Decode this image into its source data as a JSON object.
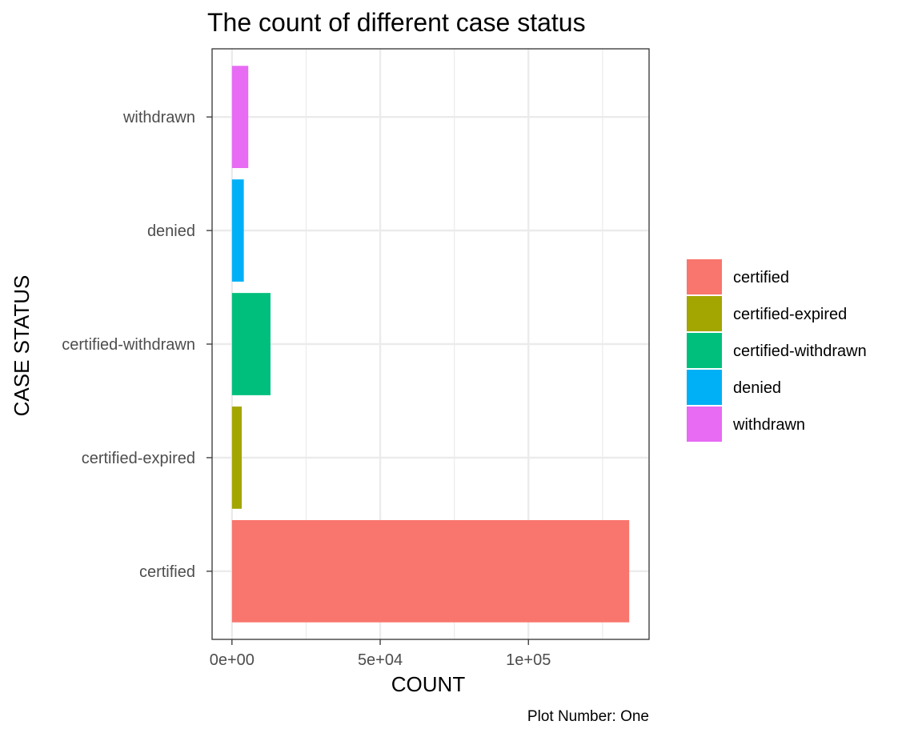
{
  "chart_data": {
    "type": "bar",
    "orientation": "horizontal",
    "title": "The count of different case status",
    "xlabel": "COUNT",
    "ylabel": "CASE STATUS",
    "caption": "Plot Number: One",
    "categories": [
      "certified",
      "certified-expired",
      "certified-withdrawn",
      "denied",
      "withdrawn"
    ],
    "values": [
      134000,
      3300,
      13000,
      4000,
      5500
    ],
    "colors": [
      "#F8766D",
      "#A3A500",
      "#00BF7D",
      "#00B0F6",
      "#E76BF3"
    ],
    "xlim": [
      -6700,
      140700
    ],
    "x_ticks": [
      0,
      50000,
      100000
    ],
    "x_tick_labels": [
      "0e+00",
      "5e+04",
      "1e+05"
    ],
    "x_minor_ticks": [
      25000,
      75000,
      125000
    ],
    "grid": true,
    "legend": {
      "placement": "right",
      "entries": [
        "certified",
        "certified-expired",
        "certified-withdrawn",
        "denied",
        "withdrawn"
      ]
    }
  }
}
